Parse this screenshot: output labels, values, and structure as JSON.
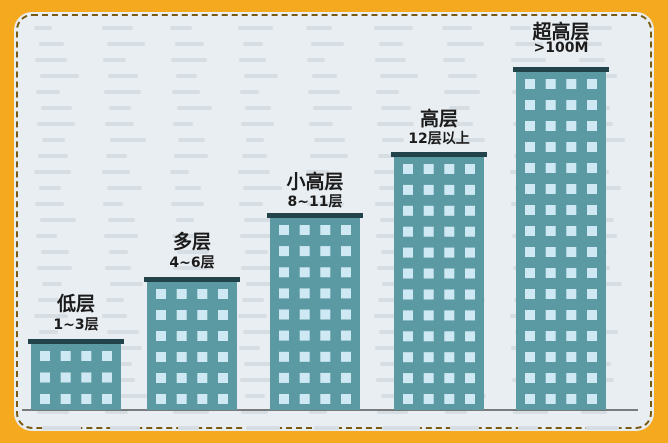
{
  "buildings": [
    {
      "name": "低层",
      "range": "1~3层",
      "floors": 3
    },
    {
      "name": "多层",
      "range": "4~6层",
      "floors": 6
    },
    {
      "name": "小高层",
      "range": "8~11层",
      "floors": 9
    },
    {
      "name": "高层",
      "range": "12层以上",
      "floors": 12
    },
    {
      "name": "超高层",
      "range": ">100M",
      "floors": 16
    }
  ],
  "colors": {
    "background": "#f5a91f",
    "panel": "#e9eef2",
    "building": "#5b9aa3",
    "roof": "#23434a",
    "window": "#cfe9f4",
    "ground": "#555555"
  }
}
